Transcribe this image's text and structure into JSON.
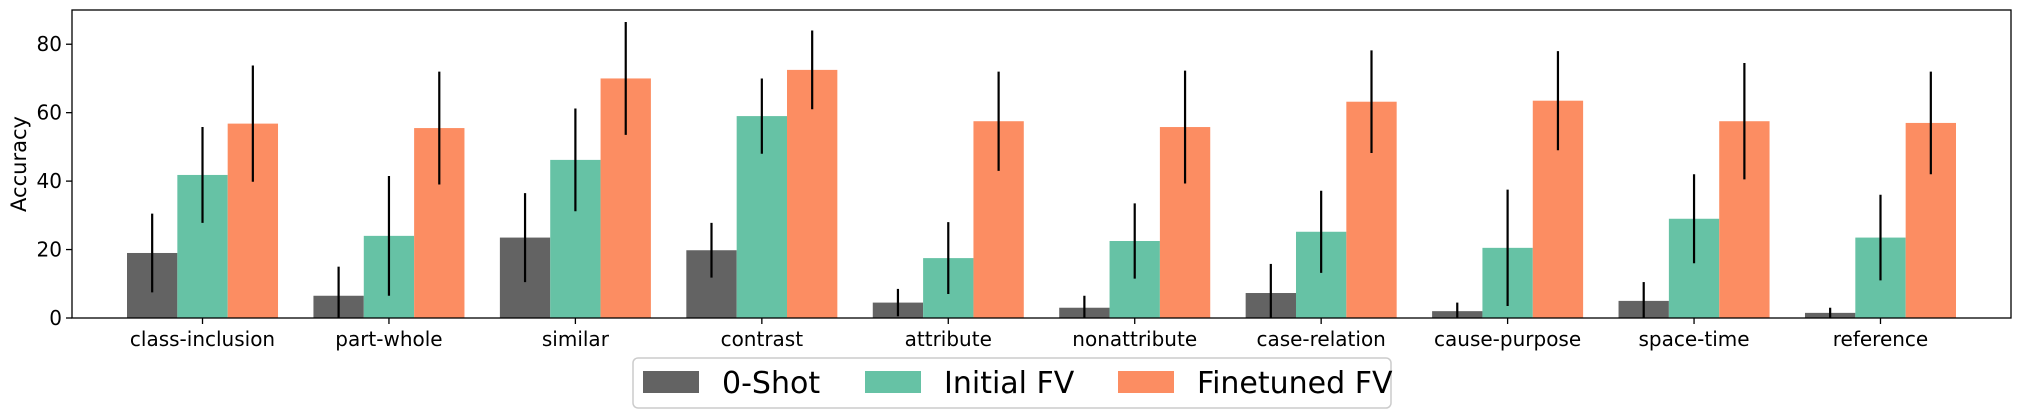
{
  "chart_data": {
    "type": "bar",
    "title": "",
    "xlabel": "",
    "ylabel": "Accuracy",
    "ylim": [
      0,
      90
    ],
    "yticks": [
      0,
      20,
      40,
      60,
      80
    ],
    "grid": false,
    "legend_position": "bottom-center",
    "categories": [
      "class-inclusion",
      "part-whole",
      "similar",
      "contrast",
      "attribute",
      "nonattribute",
      "case-relation",
      "cause-purpose",
      "space-time",
      "reference"
    ],
    "series": [
      {
        "name": "0-Shot",
        "color": "#636363",
        "values": [
          19,
          6.5,
          23.5,
          19.8,
          4.5,
          3.0,
          7.3,
          2.0,
          5.0,
          1.5
        ],
        "error": [
          11.5,
          8.5,
          13,
          8,
          4,
          3.5,
          8.5,
          2.5,
          5.5,
          1.5
        ]
      },
      {
        "name": "Initial FV",
        "color": "#66c2a5",
        "values": [
          41.8,
          24,
          46.2,
          59,
          17.5,
          22.5,
          25.2,
          20.5,
          29,
          23.5
        ],
        "error": [
          14,
          17.5,
          15,
          11,
          10.5,
          11,
          12,
          17,
          13,
          12.5
        ]
      },
      {
        "name": "Finetuned FV",
        "color": "#fc8d62",
        "values": [
          56.8,
          55.5,
          70,
          72.5,
          57.5,
          55.8,
          63.2,
          63.5,
          57.5,
          57
        ],
        "error": [
          17,
          16.5,
          16.5,
          11.5,
          14.5,
          16.5,
          15,
          14.5,
          17,
          15
        ]
      }
    ]
  }
}
